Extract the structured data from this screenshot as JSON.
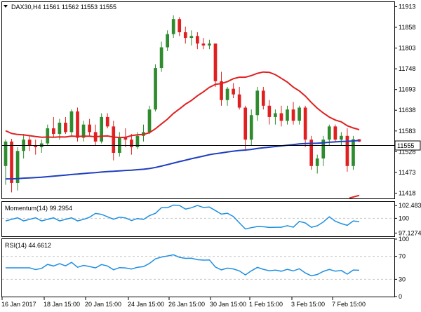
{
  "header": {
    "symbol_line": "DAX30,H4  11561 11562 11553 11555",
    "current_price": "11555"
  },
  "main_axis": {
    "ticks": [
      "11913",
      "11858",
      "11803",
      "11748",
      "11693",
      "11638",
      "11583",
      "11528",
      "11473",
      "11418"
    ],
    "range": [
      11404,
      11925
    ]
  },
  "momentum": {
    "label": "Momentum(14) 99.2954",
    "ticks": [
      "102.4833",
      "100",
      "97.1274"
    ],
    "range": [
      96.5,
      103.2
    ]
  },
  "rsi": {
    "label": "RSI(14) 44.6612",
    "ticks": [
      "100",
      "70",
      "30",
      "0"
    ],
    "range": [
      0,
      100
    ]
  },
  "x_axis": {
    "labels": [
      "16 Jan 2017",
      "18 Jan 15:00",
      "20 Jan 15:00",
      "24 Jan 15:00",
      "26 Jan 15:00",
      "30 Jan 15:00",
      "1 Feb 15:00",
      "3 Feb 15:00",
      "7 Feb 15:00"
    ]
  },
  "colors": {
    "bull": "#2e8b2e",
    "bear": "#e02020",
    "sma_fast": "#e02020",
    "sma_slow": "#1f3fbf",
    "oscillator": "#1e8fe0",
    "grid": "#c8c8c8"
  },
  "chart_data": {
    "type": "candlestick",
    "candles": [
      [
        11490,
        11560,
        11440,
        11555
      ],
      [
        11555,
        11562,
        11420,
        11445
      ],
      [
        11445,
        11540,
        11425,
        11530
      ],
      [
        11530,
        11575,
        11510,
        11560
      ],
      [
        11560,
        11570,
        11530,
        11545
      ],
      [
        11545,
        11560,
        11520,
        11540
      ],
      [
        11540,
        11560,
        11525,
        11550
      ],
      [
        11550,
        11600,
        11545,
        11590
      ],
      [
        11590,
        11620,
        11565,
        11575
      ],
      [
        11575,
        11615,
        11560,
        11605
      ],
      [
        11605,
        11620,
        11575,
        11580
      ],
      [
        11580,
        11640,
        11570,
        11635
      ],
      [
        11635,
        11645,
        11555,
        11565
      ],
      [
        11565,
        11610,
        11555,
        11600
      ],
      [
        11600,
        11615,
        11570,
        11580
      ],
      [
        11580,
        11600,
        11545,
        11555
      ],
      [
        11555,
        11630,
        11550,
        11620
      ],
      [
        11620,
        11630,
        11590,
        11595
      ],
      [
        11595,
        11610,
        11505,
        11525
      ],
      [
        11525,
        11580,
        11515,
        11565
      ],
      [
        11565,
        11590,
        11540,
        11560
      ],
      [
        11560,
        11575,
        11520,
        11540
      ],
      [
        11540,
        11580,
        11535,
        11570
      ],
      [
        11570,
        11600,
        11555,
        11580
      ],
      [
        11580,
        11650,
        11575,
        11640
      ],
      [
        11640,
        11760,
        11635,
        11750
      ],
      [
        11750,
        11820,
        11740,
        11805
      ],
      [
        11805,
        11850,
        11795,
        11840
      ],
      [
        11840,
        11890,
        11830,
        11880
      ],
      [
        11880,
        11885,
        11835,
        11845
      ],
      [
        11845,
        11860,
        11815,
        11830
      ],
      [
        11830,
        11850,
        11810,
        11835
      ],
      [
        11835,
        11845,
        11800,
        11815
      ],
      [
        11815,
        11830,
        11800,
        11810
      ],
      [
        11810,
        11825,
        11800,
        11815
      ],
      [
        11815,
        11815,
        11700,
        11715
      ],
      [
        11715,
        11740,
        11650,
        11665
      ],
      [
        11665,
        11700,
        11650,
        11695
      ],
      [
        11695,
        11710,
        11670,
        11680
      ],
      [
        11680,
        11700,
        11640,
        11645
      ],
      [
        11645,
        11650,
        11530,
        11560
      ],
      [
        11560,
        11640,
        11545,
        11625
      ],
      [
        11625,
        11700,
        11610,
        11690
      ],
      [
        11690,
        11700,
        11640,
        11650
      ],
      [
        11650,
        11665,
        11600,
        11620
      ],
      [
        11620,
        11640,
        11600,
        11630
      ],
      [
        11630,
        11650,
        11595,
        11610
      ],
      [
        11610,
        11650,
        11600,
        11640
      ],
      [
        11640,
        11660,
        11600,
        11610
      ],
      [
        11610,
        11650,
        11600,
        11645
      ],
      [
        11645,
        11650,
        11540,
        11560
      ],
      [
        11560,
        11570,
        11480,
        11490
      ],
      [
        11490,
        11520,
        11470,
        11510
      ],
      [
        11510,
        11570,
        11490,
        11560
      ],
      [
        11560,
        11600,
        11545,
        11595
      ],
      [
        11595,
        11600,
        11555,
        11560
      ],
      [
        11560,
        11580,
        11545,
        11570
      ],
      [
        11570,
        11590,
        11475,
        11490
      ],
      [
        11490,
        11570,
        11480,
        11561
      ],
      [
        11561,
        11562,
        11553,
        11555
      ]
    ]
  }
}
